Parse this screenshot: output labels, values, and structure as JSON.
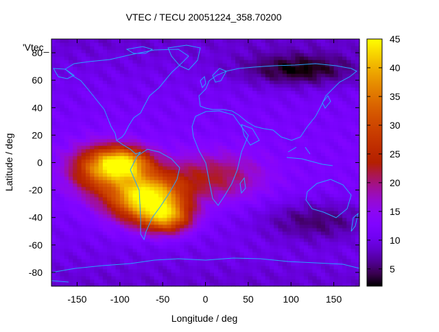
{
  "chart_data": {
    "type": "heatmap",
    "title": "VTEC / TECU 20051224_358.70200",
    "xlabel": "Longitude / deg",
    "ylabel": "Latitude / deg",
    "series_label": "'Vtec_",
    "xlim": [
      -180,
      180
    ],
    "ylim": [
      -90,
      90
    ],
    "x_ticks": [
      -150,
      -100,
      -50,
      0,
      50,
      100,
      150
    ],
    "y_ticks": [
      -80,
      -60,
      -40,
      -20,
      0,
      20,
      40,
      60,
      80
    ],
    "colorbar": {
      "range": [
        2,
        45
      ],
      "ticks": [
        5,
        10,
        15,
        20,
        25,
        30,
        35,
        40,
        45
      ],
      "colormap": "gnuplot (black-purple-red-yellow)"
    },
    "grid_resolution_deg": {
      "lon": 5,
      "lat": 2.5
    },
    "background_vtec": 10,
    "features": [
      {
        "name": "south-american equatorial anomaly peak",
        "lon": -70,
        "lat": -25,
        "vtec": 44,
        "lon_spread": 30,
        "lat_spread": 12
      },
      {
        "name": "northern crest",
        "lon": -95,
        "lat": 0,
        "vtec": 36,
        "lon_spread": 22,
        "lat_spread": 8
      },
      {
        "name": "eastern pacific enhancement",
        "lon": -125,
        "lat": -5,
        "vtec": 28,
        "lon_spread": 25,
        "lat_spread": 12
      },
      {
        "name": "mid-latitude extension",
        "lon": -45,
        "lat": -40,
        "vtec": 30,
        "lon_spread": 20,
        "lat_spread": 8
      },
      {
        "name": "atlantic tail",
        "lon": 10,
        "lat": -10,
        "vtec": 20,
        "lon_spread": 40,
        "lat_spread": 12
      },
      {
        "name": "northern asia depletion",
        "lon": 110,
        "lat": 68,
        "vtec": 2,
        "lon_spread": 45,
        "lat_spread": 8
      },
      {
        "name": "southern indian ocean depletion",
        "lon": 130,
        "lat": -42,
        "vtec": 4,
        "lon_spread": 45,
        "lat_spread": 10
      }
    ]
  }
}
